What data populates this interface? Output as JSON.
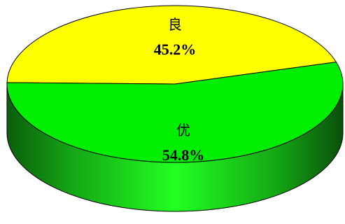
{
  "chart_data": {
    "type": "pie",
    "title": "",
    "style": "3d",
    "legend": "none",
    "slices": [
      {
        "label": "良",
        "value": 45.2,
        "value_label": "45.2%",
        "color": "#ffff00"
      },
      {
        "label": "优",
        "value": 54.8,
        "value_label": "54.8%",
        "color": "#00ee00"
      }
    ],
    "colors": {
      "side_dark": "#0a6b0a",
      "side_light": "#22ff22",
      "outline": "#000000"
    }
  }
}
